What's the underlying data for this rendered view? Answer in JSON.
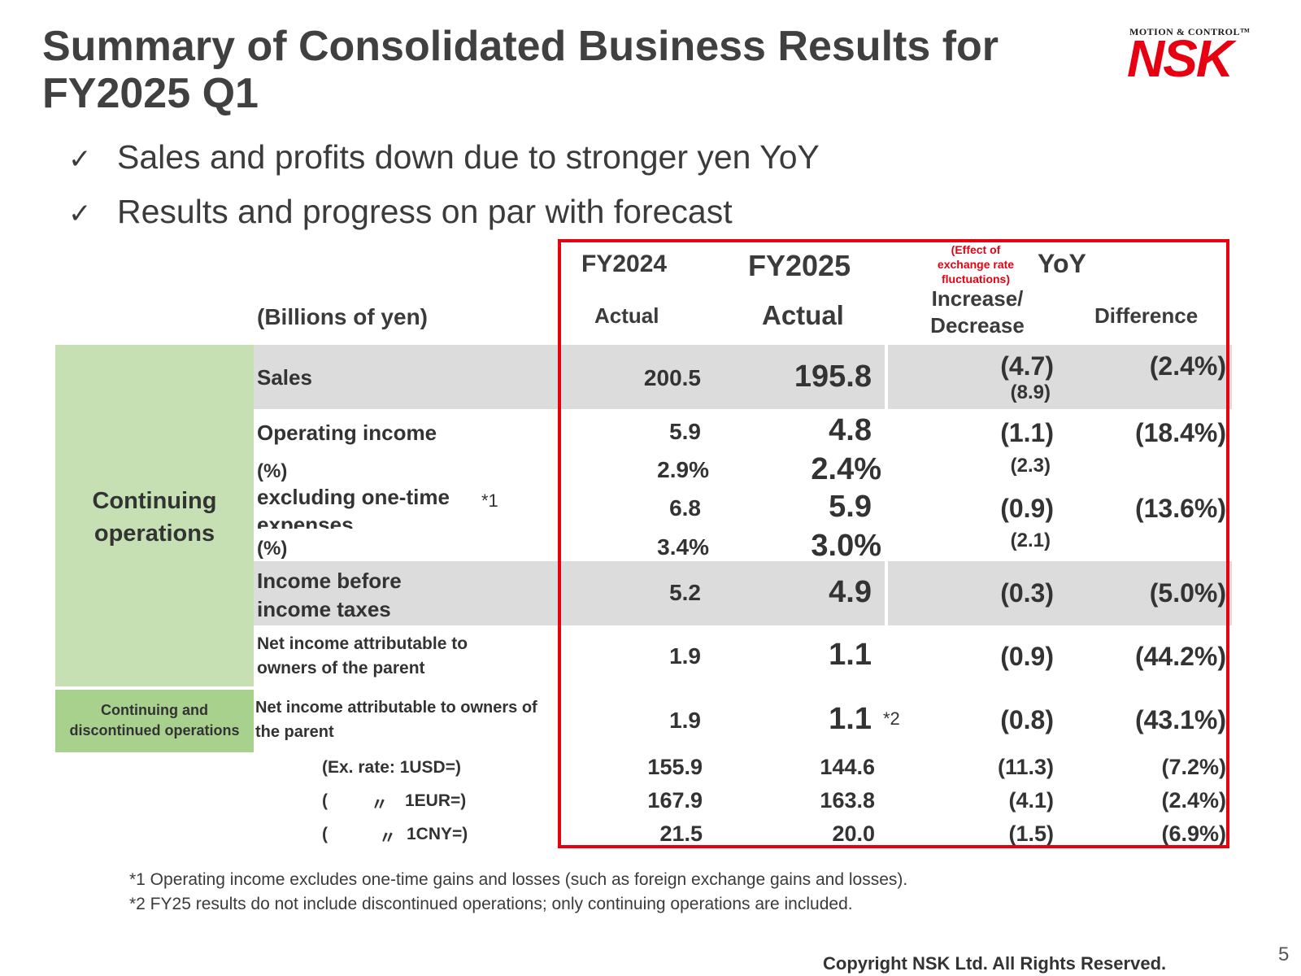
{
  "title": "Summary of Consolidated Business Results for FY2025 Q1",
  "logo": {
    "tagline": "MOTION & CONTROL™",
    "brand": "NSK"
  },
  "bullets": [
    "Sales and profits down due to stronger yen YoY",
    "Results and progress on par with forecast"
  ],
  "bullet_mark": "✓",
  "headers": {
    "units": "(Billions of yen)",
    "fy2024": "FY2024",
    "fy2024_sub": "Actual",
    "fy2025": "FY2025",
    "fy2025_sub": "Actual",
    "fx_note": "(Effect of exchange rate fluctuations)",
    "yoy": "YoY",
    "inc_dec": "Increase/ Decrease",
    "difference": "Difference"
  },
  "groups": {
    "continuing": "Continuing operations",
    "continuing_discontinued": "Continuing and discontinued operations"
  },
  "rows": {
    "sales": {
      "label": "Sales",
      "fy2024": "200.5",
      "fy2025": "195.8",
      "inc": "(4.7)",
      "fx": "(8.9)",
      "diff": "(2.4%)"
    },
    "op_income": {
      "label": "Operating income",
      "fy2024": "5.9",
      "fy2025": "4.8",
      "inc": "(1.1)",
      "diff": "(18.4%)"
    },
    "op_pct": {
      "label": "(%)",
      "fy2024": "2.9%",
      "fy2025": "2.4%",
      "fx": "(2.3)"
    },
    "excl": {
      "label": "excluding one-time expenses",
      "note": "*1",
      "fy2024": "6.8",
      "fy2025": "5.9",
      "inc": "(0.9)",
      "diff": "(13.6%)"
    },
    "excl_pct": {
      "label": "(%)",
      "fy2024": "3.4%",
      "fy2025": "3.0%",
      "fx": "(2.1)"
    },
    "ibt": {
      "label": "Income before income taxes",
      "fy2024": "5.2",
      "fy2025": "4.9",
      "inc": "(0.3)",
      "diff": "(5.0%)"
    },
    "ni": {
      "label": "Net income attributable to owners of the parent",
      "fy2024": "1.9",
      "fy2025": "1.1",
      "inc": "(0.9)",
      "diff": "(44.2%)"
    },
    "ni_all": {
      "label": "Net income attributable to owners of the parent",
      "fy2024": "1.9",
      "fy2025": "1.1",
      "note": "*2",
      "inc": "(0.8)",
      "diff": "(43.1%)"
    }
  },
  "fx_rows": [
    {
      "label": "(Ex. rate: 1USD=)",
      "fy2024": "155.9",
      "fy2025": "144.6",
      "inc": "(11.3)",
      "diff": "(7.2%)"
    },
    {
      "label_open": "(",
      "ditto": "〃",
      "label": "1EUR=)",
      "fy2024": "167.9",
      "fy2025": "163.8",
      "inc": "(4.1)",
      "diff": "(2.4%)"
    },
    {
      "label_open": "(",
      "ditto": "〃",
      "label": "1CNY=)",
      "fy2024": "21.5",
      "fy2025": "20.0",
      "inc": "(1.5)",
      "diff": "(6.9%)"
    }
  ],
  "footnotes": [
    "*1 Operating income excludes one-time gains and losses (such as foreign exchange gains and losses).",
    "*2 FY25 results do not include discontinued operations; only continuing operations are included."
  ],
  "copyright": "Copyright NSK Ltd. All Rights Reserved.",
  "page_number": "5",
  "colors": {
    "accent_red": "#e60012",
    "band_gray": "#dcdcdc",
    "green_light": "#c6e0b4",
    "green_dark": "#a9d18e"
  }
}
